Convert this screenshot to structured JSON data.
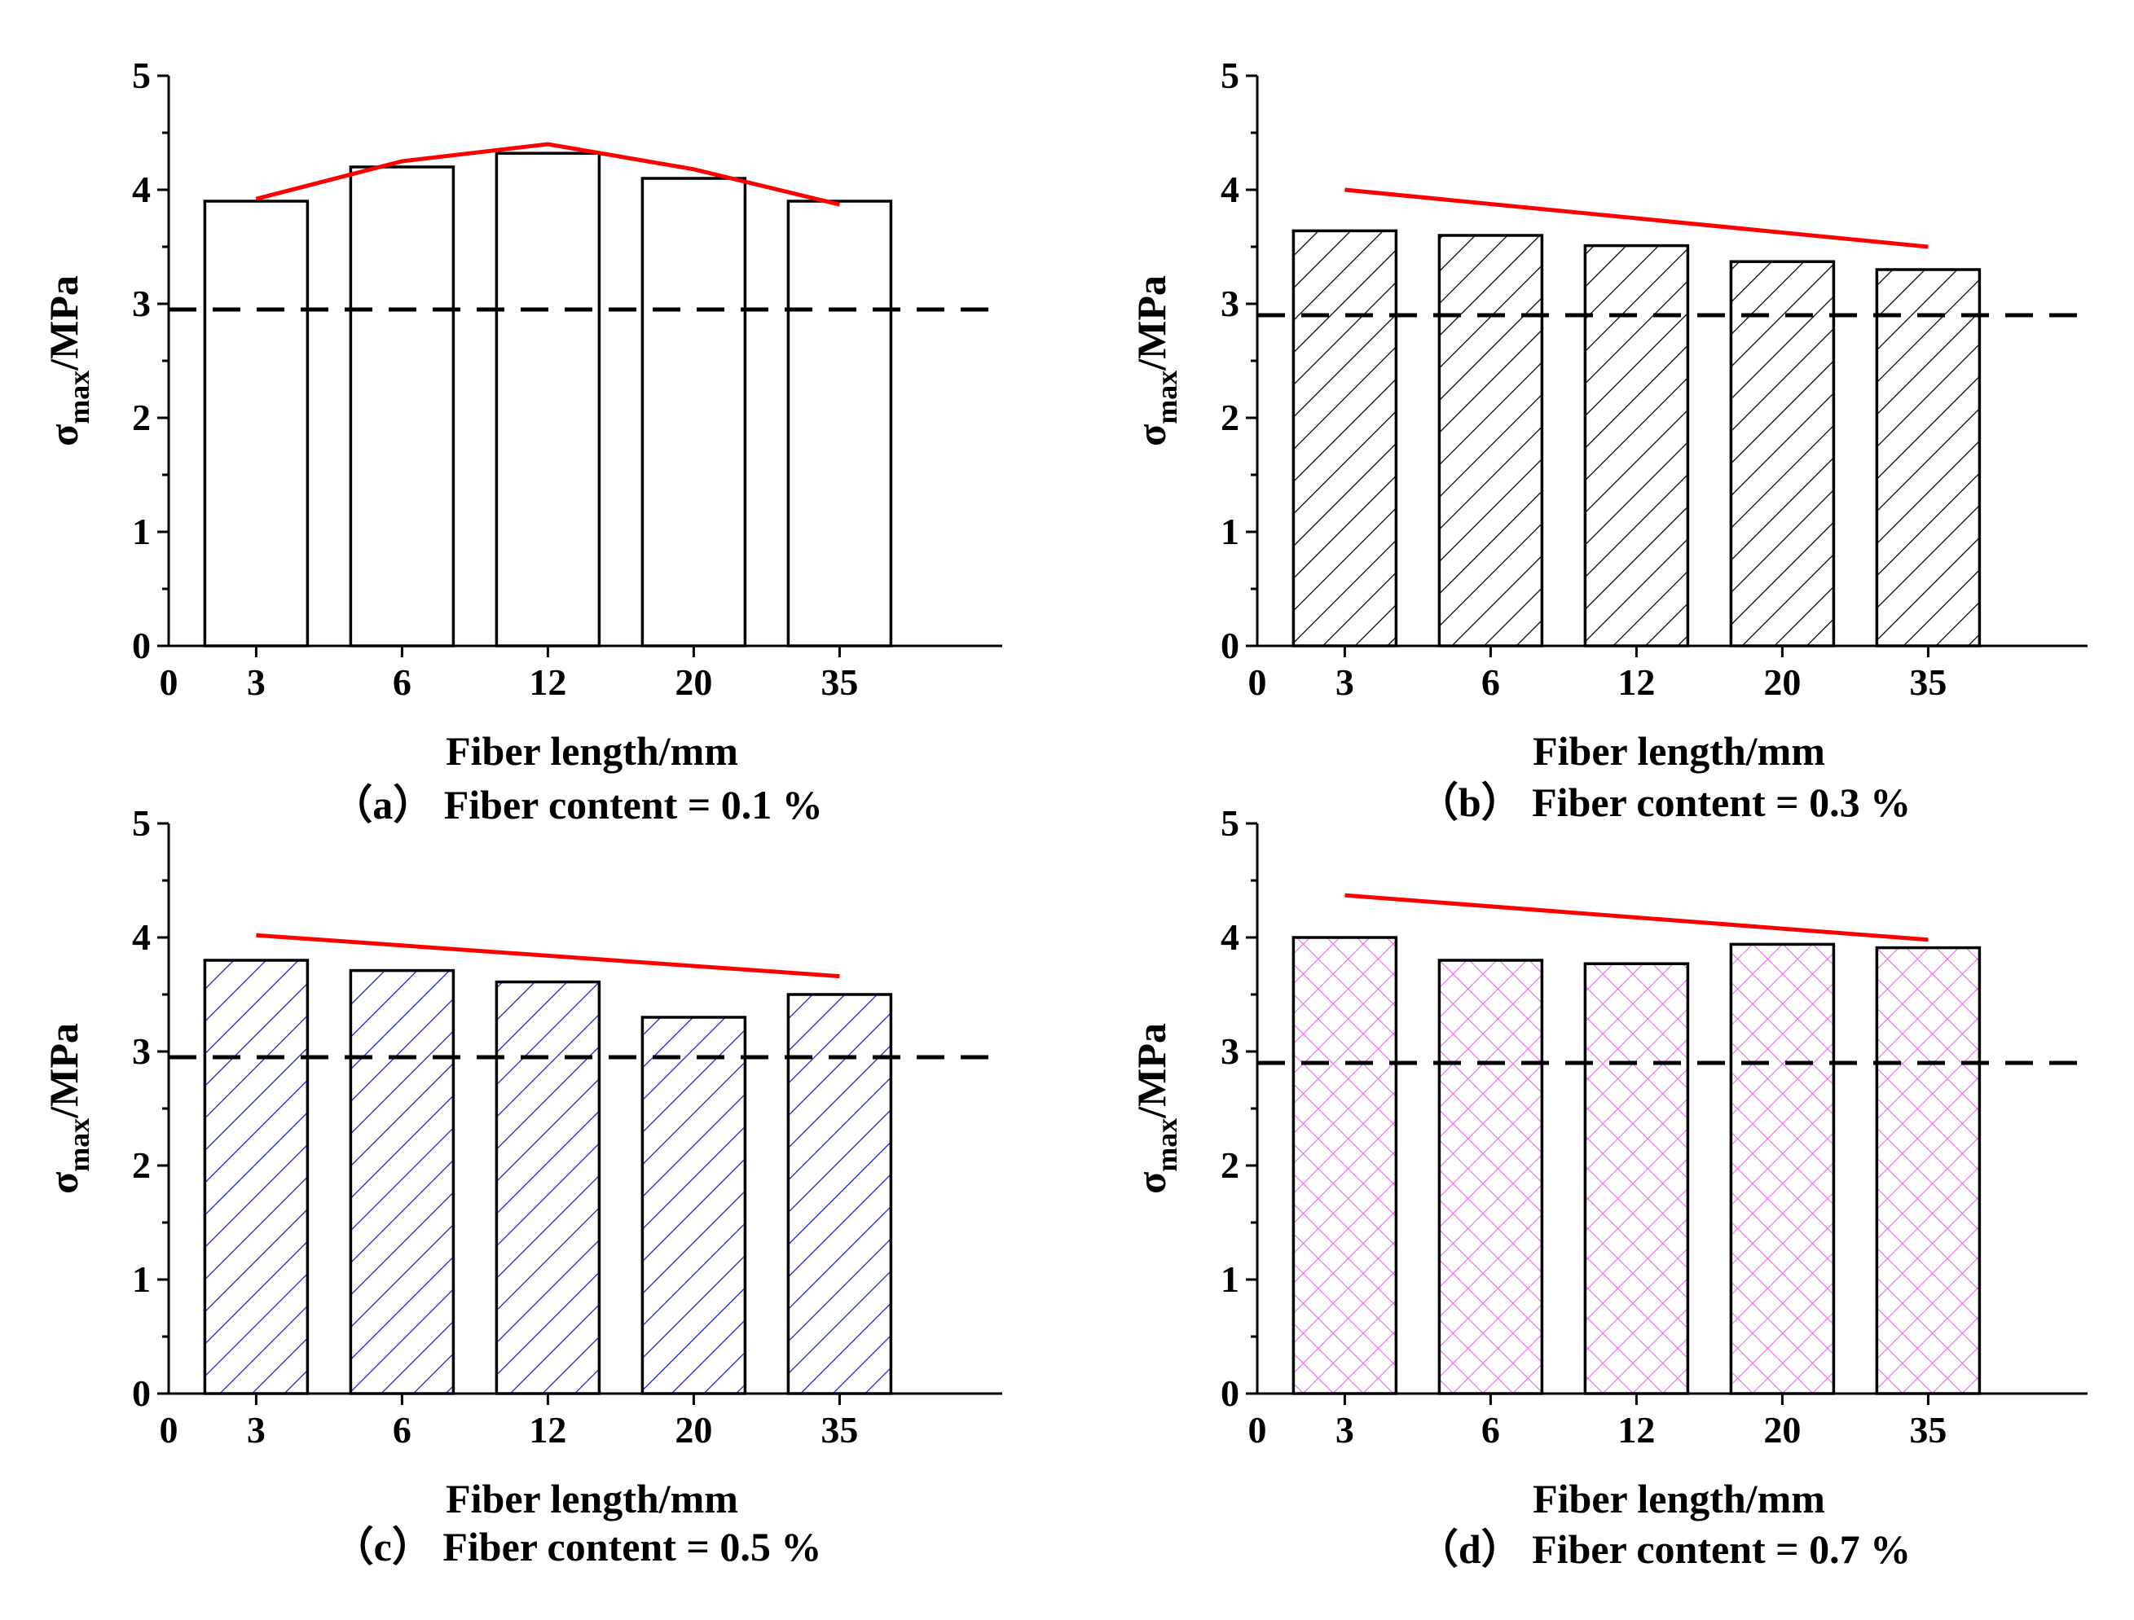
{
  "figure": {
    "y_label_main": "σ",
    "y_label_sub": "max",
    "y_label_unit": "/MPa"
  },
  "chart_data": [
    {
      "type": "bar",
      "panel": "a",
      "caption": "（a） Fiber content = 0.1 %",
      "xlabel": "Fiber length/mm",
      "ylabel": "σmax/MPa",
      "x_origin_label": "0",
      "categories": [
        "3",
        "6",
        "12",
        "20",
        "35"
      ],
      "values": [
        3.9,
        4.2,
        4.32,
        4.1,
        3.9
      ],
      "ylim": [
        0,
        5
      ],
      "yticks": [
        0,
        1,
        2,
        3,
        4,
        5
      ],
      "fill": "none",
      "pattern_color": "#000000",
      "reference_line": {
        "value": 2.95,
        "style": "dashed",
        "color": "#000000"
      },
      "trend_line": {
        "color": "#ff0000",
        "points": [
          {
            "x": "3",
            "y": 3.92
          },
          {
            "x": "6",
            "y": 4.25
          },
          {
            "x": "12",
            "y": 4.4
          },
          {
            "x": "20",
            "y": 4.18
          },
          {
            "x": "35",
            "y": 3.87
          }
        ]
      }
    },
    {
      "type": "bar",
      "panel": "b",
      "caption": "（b） Fiber content = 0.3 %",
      "xlabel": "Fiber length/mm",
      "ylabel": "σmax/MPa",
      "x_origin_label": "0",
      "categories": [
        "3",
        "6",
        "12",
        "20",
        "35"
      ],
      "values": [
        3.64,
        3.6,
        3.51,
        3.37,
        3.3
      ],
      "ylim": [
        0,
        5
      ],
      "yticks": [
        0,
        1,
        2,
        3,
        4,
        5
      ],
      "fill": "hatch-diagonal",
      "pattern_color": "#000000",
      "reference_line": {
        "value": 2.9,
        "style": "dashed",
        "color": "#000000"
      },
      "trend_line": {
        "color": "#ff0000",
        "points": [
          {
            "x": "3",
            "y": 4.0
          },
          {
            "x": "35",
            "y": 3.5
          }
        ]
      }
    },
    {
      "type": "bar",
      "panel": "c",
      "caption": "（c） Fiber content = 0.5 %",
      "xlabel": "Fiber length/mm",
      "ylabel": "σmax/MPa",
      "x_origin_label": "0",
      "categories": [
        "3",
        "6",
        "12",
        "20",
        "35"
      ],
      "values": [
        3.8,
        3.71,
        3.61,
        3.3,
        3.5
      ],
      "ylim": [
        0,
        5
      ],
      "yticks": [
        0,
        1,
        2,
        3,
        4,
        5
      ],
      "fill": "hatch-diagonal",
      "pattern_color": "#1a1acc",
      "reference_line": {
        "value": 2.95,
        "style": "dashed",
        "color": "#000000"
      },
      "trend_line": {
        "color": "#ff0000",
        "points": [
          {
            "x": "3",
            "y": 4.02
          },
          {
            "x": "35",
            "y": 3.66
          }
        ]
      }
    },
    {
      "type": "bar",
      "panel": "d",
      "caption": "（d） Fiber content = 0.7 %",
      "xlabel": "Fiber length/mm",
      "ylabel": "σmax/MPa",
      "x_origin_label": "0",
      "categories": [
        "3",
        "6",
        "12",
        "20",
        "35"
      ],
      "values": [
        4.0,
        3.8,
        3.77,
        3.94,
        3.91
      ],
      "ylim": [
        0,
        5
      ],
      "yticks": [
        0,
        1,
        2,
        3,
        4,
        5
      ],
      "fill": "hatch-cross",
      "pattern_color": "#ee66ee",
      "reference_line": {
        "value": 2.9,
        "style": "dashed",
        "color": "#000000"
      },
      "trend_line": {
        "color": "#ff0000",
        "points": [
          {
            "x": "3",
            "y": 4.37
          },
          {
            "x": "35",
            "y": 3.98
          }
        ]
      }
    }
  ]
}
